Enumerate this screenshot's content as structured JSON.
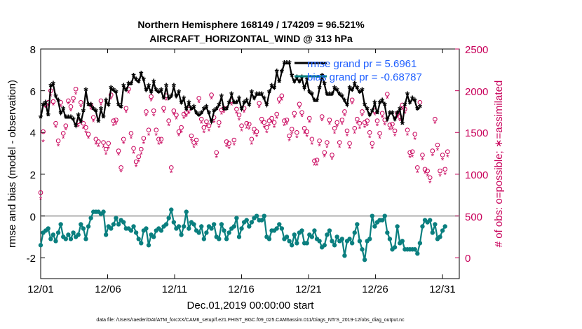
{
  "chart_data": {
    "type": "line",
    "title_line1": "Northern Hemisphere 168149 / 174209 = 96.521%",
    "title_line2": "AIRCRAFT_HORIZONTAL_WIND @ 313 hPa",
    "xlabel": "Dec.01,2019 00:00:00 start",
    "ylabel_left": "rmse and bias (model - observation)",
    "ylabel_right": "# of obs: o=possible; ∗=assimilated",
    "x_tick_labels": [
      "12/01",
      "12/06",
      "12/11",
      "12/16",
      "12/21",
      "12/26",
      "12/31"
    ],
    "x_ticks": [
      0,
      5,
      10,
      15,
      20,
      25,
      30
    ],
    "xlim": [
      0,
      31.25
    ],
    "ylim_left": [
      -3,
      8
    ],
    "y_ticks_left": [
      -2,
      0,
      2,
      4,
      6,
      8
    ],
    "ylim_right": [
      -250,
      2500
    ],
    "y_ticks_right": [
      0,
      500,
      1000,
      1500,
      2000,
      2500
    ],
    "legend_rmse": "rmse grand pr = 5.6961",
    "legend_bias": "bias grand pr = -0.68787",
    "footer": "data file: /Users/raeder/DAI/ATM_forcXX/CAM6_setup/f.e21.FHIST_BGC.f09_025.CAM6assim.011/Diags_NTrS_2019-12/obs_diag_output.nc",
    "colors": {
      "rmse": "#000000",
      "bias": "#0a7f7f",
      "obs": "#c8005a",
      "zero_line": "#b0b0b0"
    },
    "series": [
      {
        "name": "rmse",
        "axis": "left",
        "values": [
          4.7,
          5.3,
          5.4,
          4.8,
          6.2,
          6.3,
          5.7,
          5.5,
          4.9,
          5.1,
          4.7,
          4.7,
          4.7,
          4.6,
          4.3,
          4.8,
          4.5,
          5.0,
          6.0,
          5.3,
          5.3,
          5.1,
          5.0,
          4.5,
          5.1,
          4.7,
          5.5,
          5.3,
          6.1,
          6.0,
          5.9,
          5.3,
          5.2,
          6.2,
          6.0,
          6.3,
          6.3,
          6.7,
          6.5,
          6.4,
          6.8,
          6.5,
          6.0,
          6.2,
          5.9,
          6.4,
          6.0,
          5.9,
          6.0,
          5.6,
          6.2,
          5.6,
          5.7,
          6.2,
          5.7,
          5.9,
          5.4,
          5.6,
          5.1,
          5.4,
          5.1,
          5.2,
          4.9,
          4.8,
          4.9,
          5.1,
          5.2,
          4.9,
          4.5,
          5.0,
          5.1,
          5.3,
          5.7,
          5.1,
          5.1,
          5.4,
          5.8,
          5.4,
          5.4,
          5.6,
          5.1,
          5.4,
          5.5,
          5.3,
          5.9,
          5.6,
          5.8,
          5.8,
          5.8,
          5.6,
          5.3,
          5.9,
          6.2,
          6.1,
          6.9,
          6.4,
          6.9,
          7.3,
          7.3,
          7.3,
          6.7,
          6.4,
          6.6,
          6.4,
          6.6,
          6.1,
          6.5,
          5.9,
          5.8,
          5.5,
          5.5,
          6.1,
          6.7,
          6.3,
          5.8,
          5.8,
          5.8,
          6.1,
          6.0,
          5.8,
          5.7,
          5.5,
          5.3,
          6.1,
          6.0,
          6.3,
          6.1,
          5.9,
          6.0,
          5.3,
          5.1,
          4.8,
          5.0,
          5.4,
          4.9,
          5.4,
          5.5,
          5.3,
          4.6,
          4.9,
          4.9,
          4.6,
          4.9,
          5.1,
          4.4,
          5.3,
          5.8,
          5.4,
          5.6,
          5.5,
          5.1,
          5.2
        ]
      },
      {
        "name": "bias",
        "axis": "left",
        "values": [
          -1.4,
          -0.8,
          -0.7,
          -0.6,
          -1.1,
          -0.9,
          -1.2,
          -0.8,
          -0.4,
          -1.0,
          -1.1,
          -0.9,
          -1.1,
          -0.8,
          -1.0,
          -0.9,
          -0.4,
          -0.6,
          -1.1,
          -0.5,
          -0.1,
          0.2,
          0.2,
          0.2,
          0.1,
          0.2,
          -0.9,
          -0.5,
          -0.6,
          -0.4,
          -0.1,
          -0.4,
          -0.2,
          -0.3,
          -0.6,
          -0.6,
          -0.7,
          -0.5,
          -0.8,
          -1.1,
          -1.3,
          -0.7,
          -0.6,
          -1.4,
          -0.9,
          -1.0,
          -0.7,
          -0.6,
          -0.7,
          -0.5,
          -0.4,
          -0.1,
          0.3,
          -0.3,
          -0.6,
          -0.5,
          -0.9,
          -0.5,
          0.2,
          -0.6,
          -0.3,
          -0.4,
          -0.7,
          -0.8,
          -0.5,
          -1.1,
          -0.8,
          -0.5,
          -0.6,
          -0.4,
          -1.0,
          -1.1,
          -0.4,
          -0.7,
          -1.1,
          -0.8,
          -0.6,
          -0.5,
          -0.1,
          -1.0,
          -0.6,
          -0.3,
          -0.2,
          -0.5,
          -0.3,
          -0.1,
          0.0,
          -0.2,
          -0.2,
          0.0,
          -1.0,
          -1.1,
          -0.7,
          -0.7,
          -0.6,
          -0.4,
          -0.6,
          -1.1,
          -1.0,
          -1.2,
          -1.4,
          -0.9,
          -1.3,
          -0.8,
          -0.7,
          -1.3,
          -1.3,
          -0.9,
          -1.0,
          -0.7,
          -1.1,
          -1.2,
          -1.5,
          -1.4,
          -0.9,
          -0.7,
          -1.2,
          -1.4,
          -1.0,
          -1.2,
          -1.1,
          -1.9,
          -1.2,
          -1.1,
          -1.3,
          -0.8,
          -0.4,
          -1.2,
          -1.6,
          -2.1,
          -1.2,
          -1.1,
          0.0,
          -0.5,
          -0.3,
          -0.2,
          -0.2,
          0.0,
          -0.8,
          -1.1,
          -1.6,
          -1.5,
          -0.5,
          -1.3,
          -1.2,
          -1.6,
          -1.6,
          -1.6,
          -1.6,
          -1.6,
          -1.8,
          -1.3,
          -0.5,
          -0.2,
          -0.3,
          -0.2,
          -0.8,
          -0.4,
          -1.1,
          -1.0,
          -0.7,
          -0.5
        ]
      },
      {
        "name": "obs_possible",
        "axis": "right",
        "values": [
          780,
          1510,
          1830,
          1860,
          2000,
          1870,
          1610,
          1400,
          1860,
          1490,
          1580,
          1880,
          1810,
          1910,
          2020,
          1630,
          1860,
          1610,
          1560,
          1480,
          1830,
          1680,
          1420,
          1390,
          1880,
          1380,
          1300,
          1370,
          1950,
          1640,
          1650,
          1280,
          1080,
          1420,
          1790,
          2020,
          1490,
          1310,
          1150,
          1210,
          1300,
          1430,
          1750,
          1530,
          1930,
          1760,
          1530,
          1420,
          1420,
          1790,
          1940,
          1640,
          1080,
          1760,
          1710,
          1510,
          1560,
          1720,
          1740,
          1780,
          1460,
          1380,
          1410,
          1910,
          1660,
          1560,
          1630,
          1580,
          1950,
          1680,
          1260,
          1620,
          1770,
          1790,
          1390,
          1370,
          1880,
          1410,
          1780,
          1710,
          1580,
          1790,
          1610,
          1600,
          1420,
          1540,
          1510,
          1850,
          1660,
          1620,
          1560,
          1640,
          1670,
          1620,
          1720,
          1900,
          1940,
          1640,
          1650,
          1460,
          1540,
          1730,
          1500,
          1840,
          1740,
          1550,
          1510,
          1670,
          1420,
          1160,
          1170,
          1400,
          1690,
          1260,
          1380,
          1650,
          1230,
          1550,
          1620,
          1380,
          1650,
          1750,
          1520,
          1370,
          1890,
          1550,
          1660,
          1610,
          1750,
          1620,
          1640,
          1500,
          1370,
          1760,
          1640,
          1490,
          1730,
          1650,
          1960,
          1590,
          1600,
          1520,
          1730,
          1690,
          1830,
          1780,
          1530,
          1260,
          1270,
          1480,
          1080,
          1860,
          1230,
          1060,
          1040,
          960,
          1280,
          1660,
          1350,
          1040,
          1230,
          1060,
          1270
        ]
      },
      {
        "name": "obs_assimilated",
        "axis": "right",
        "values": [
          700,
          1390,
          1800,
          1820,
          1940,
          1830,
          1560,
          1340,
          1810,
          1430,
          1530,
          1840,
          1760,
          1860,
          1960,
          1570,
          1810,
          1550,
          1500,
          1430,
          1780,
          1630,
          1360,
          1330,
          1830,
          1320,
          1240,
          1310,
          1900,
          1580,
          1600,
          1230,
          1030,
          1370,
          1740,
          1970,
          1430,
          1250,
          1090,
          1150,
          1240,
          1370,
          1700,
          1470,
          1880,
          1700,
          1470,
          1360,
          1370,
          1740,
          1890,
          1580,
          1020,
          1710,
          1660,
          1460,
          1500,
          1670,
          1690,
          1730,
          1400,
          1320,
          1350,
          1860,
          1610,
          1500,
          1570,
          1520,
          1900,
          1620,
          1200,
          1560,
          1720,
          1740,
          1330,
          1310,
          1830,
          1350,
          1730,
          1650,
          1520,
          1740,
          1550,
          1540,
          1360,
          1480,
          1450,
          1800,
          1610,
          1560,
          1500,
          1580,
          1620,
          1560,
          1670,
          1850,
          1890,
          1580,
          1600,
          1400,
          1480,
          1680,
          1440,
          1790,
          1690,
          1490,
          1450,
          1620,
          1360,
          1110,
          1110,
          1340,
          1640,
          1210,
          1320,
          1600,
          1180,
          1490,
          1570,
          1320,
          1600,
          1700,
          1460,
          1310,
          1840,
          1490,
          1610,
          1550,
          1700,
          1560,
          1580,
          1440,
          1310,
          1710,
          1580,
          1430,
          1680,
          1590,
          1910,
          1530,
          1540,
          1460,
          1680,
          1640,
          1780,
          1730,
          1470,
          1200,
          1210,
          1420,
          1020,
          1810,
          1170,
          1010,
          980,
          900,
          1220,
          1610,
          1290,
          980,
          1170,
          1000,
          1210
        ]
      }
    ],
    "x_step": 0.1875
  }
}
